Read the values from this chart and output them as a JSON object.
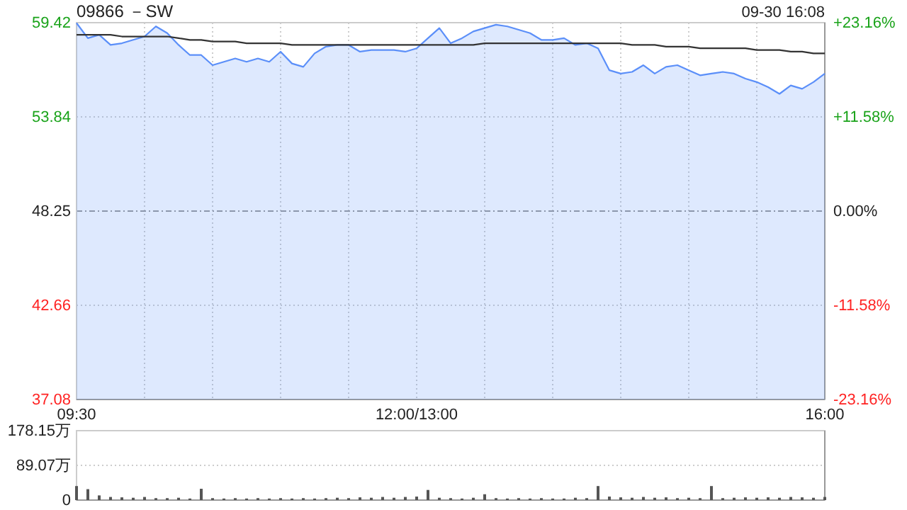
{
  "chart_data": [
    {
      "type": "line",
      "title": "09866 －SW",
      "annotations": [
        "09-30 16:08"
      ],
      "categories": [
        "09:30",
        null,
        null,
        null,
        null,
        null,
        null,
        null,
        null,
        null,
        null,
        null,
        null,
        null,
        null,
        null,
        null,
        null,
        null,
        null,
        null,
        null,
        null,
        null,
        null,
        null,
        null,
        null,
        null,
        null,
        "12:00/13:00",
        null,
        null,
        null,
        null,
        null,
        null,
        null,
        null,
        null,
        null,
        null,
        null,
        null,
        null,
        null,
        null,
        null,
        null,
        null,
        null,
        null,
        null,
        null,
        null,
        null,
        null,
        null,
        null,
        null,
        null,
        null,
        null,
        null,
        null,
        null,
        "16:00"
      ],
      "ylim": [
        37.08,
        59.42
      ],
      "yticks": [
        37.08,
        42.66,
        48.25,
        53.84,
        59.42
      ],
      "y2lim": [
        -23.16,
        23.16
      ],
      "y2ticks": [
        {
          "value": -23.16,
          "label": "-23.16%"
        },
        {
          "value": -11.58,
          "label": "-11.58%"
        },
        {
          "value": 0,
          "label": "0.00%"
        },
        {
          "value": 11.58,
          "label": "+11.58%"
        },
        {
          "value": 23.16,
          "label": "+23.16%"
        }
      ],
      "grid": true,
      "ref_lines": [
        {
          "axis": "y",
          "value": 48.25,
          "line_style": "dashed",
          "color": "#999999"
        }
      ],
      "series": [
        {
          "color": "#5b8ff9",
          "values": [
            59.4,
            58.5,
            58.7,
            58.1,
            58.2,
            58.4,
            58.6,
            59.2,
            58.8,
            58.1,
            57.5,
            57.5,
            56.9,
            57.1,
            57.3,
            57.1,
            57.3,
            57.1,
            57.7,
            57.0,
            56.8,
            57.6,
            58.0,
            58.1,
            58.1,
            57.7,
            57.8,
            57.8,
            57.8,
            57.7,
            57.9,
            58.5,
            59.1,
            58.2,
            58.5,
            58.9,
            59.1,
            59.3,
            59.2,
            59.0,
            58.8,
            58.4,
            58.4,
            58.5,
            58.1,
            58.2,
            57.9,
            56.6,
            56.4,
            56.5,
            56.9,
            56.4,
            56.8,
            56.9,
            56.6,
            56.3,
            56.4,
            56.5,
            56.4,
            56.1,
            55.9,
            55.6,
            55.2,
            55.7,
            55.5,
            55.9,
            56.4
          ]
        },
        {
          "type": "line",
          "color": "#333333",
          "values": [
            58.7,
            58.7,
            58.7,
            58.7,
            58.6,
            58.6,
            58.6,
            58.6,
            58.6,
            58.5,
            58.4,
            58.4,
            58.3,
            58.3,
            58.3,
            58.2,
            58.2,
            58.2,
            58.2,
            58.1,
            58.1,
            58.1,
            58.1,
            58.1,
            58.1,
            58.1,
            58.1,
            58.1,
            58.1,
            58.1,
            58.1,
            58.1,
            58.1,
            58.1,
            58.1,
            58.1,
            58.2,
            58.2,
            58.2,
            58.2,
            58.2,
            58.2,
            58.2,
            58.2,
            58.2,
            58.2,
            58.2,
            58.2,
            58.2,
            58.1,
            58.1,
            58.1,
            58.0,
            58.0,
            58.0,
            57.9,
            57.9,
            57.9,
            57.9,
            57.9,
            57.8,
            57.8,
            57.8,
            57.7,
            57.7,
            57.6,
            57.6
          ]
        }
      ]
    },
    {
      "type": "bar",
      "categories": [
        null,
        null,
        null,
        null,
        null,
        null,
        null,
        null,
        null,
        null,
        null,
        null,
        null,
        null,
        null,
        null,
        null,
        null,
        null,
        null,
        null,
        null,
        null,
        null,
        null,
        null,
        null,
        null,
        null,
        null,
        null,
        null,
        null,
        null,
        null,
        null,
        null,
        null,
        null,
        null,
        null,
        null,
        null,
        null,
        null,
        null,
        null,
        null,
        null,
        null,
        null,
        null,
        null,
        null,
        null,
        null,
        null,
        null,
        null,
        null,
        null,
        null,
        null,
        null,
        null,
        null,
        null
      ],
      "ylim": [
        0,
        178.15
      ],
      "yticks": [
        0,
        {
          "value": 89.07,
          "label": "89.07万"
        },
        {
          "value": 178.15,
          "label": "178.15万"
        }
      ],
      "grid": "y",
      "tick_labels": "y",
      "color": "#555555",
      "values": [
        36,
        28,
        12,
        8,
        7,
        6,
        8,
        5,
        5,
        6,
        4,
        29,
        5,
        4,
        5,
        4,
        5,
        4,
        5,
        4,
        5,
        4,
        5,
        6,
        5,
        7,
        6,
        8,
        6,
        8,
        9,
        26,
        6,
        5,
        4,
        6,
        15,
        5,
        4,
        5,
        4,
        5,
        4,
        4,
        6,
        5,
        36,
        9,
        7,
        6,
        8,
        6,
        7,
        5,
        6,
        5,
        36,
        5,
        6,
        7,
        6,
        7,
        6,
        8,
        7,
        6,
        8
      ]
    }
  ]
}
